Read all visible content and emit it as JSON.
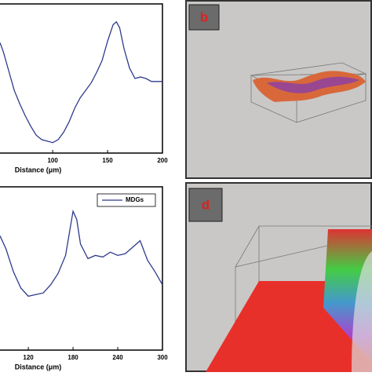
{
  "chart_data": [
    {
      "type": "line",
      "xlabel": "Distance (μm)",
      "xlim": [
        52,
        200
      ],
      "xticks": [
        100,
        150,
        200
      ],
      "ylim": [
        0,
        100
      ],
      "x": [
        52,
        55,
        60,
        65,
        70,
        75,
        80,
        85,
        90,
        95,
        100,
        105,
        110,
        115,
        120,
        125,
        130,
        135,
        140,
        145,
        150,
        155,
        158,
        161,
        165,
        170,
        175,
        180,
        185,
        190,
        195,
        200
      ],
      "series": [
        {
          "color": "#2e3a8c",
          "values": [
            74,
            68,
            55,
            42,
            33,
            25,
            18,
            12,
            9,
            8,
            7,
            9,
            14,
            21,
            30,
            37,
            42,
            47,
            54,
            62,
            75,
            86,
            88,
            84,
            70,
            57,
            50,
            51,
            50,
            48,
            48,
            48
          ]
        }
      ]
    },
    {
      "type": "line",
      "xlabel": "Distance (μm)",
      "xlim": [
        82,
        300
      ],
      "xticks": [
        120,
        180,
        240,
        300
      ],
      "ylim": [
        0,
        100
      ],
      "x": [
        82,
        90,
        100,
        110,
        120,
        130,
        140,
        150,
        160,
        170,
        180,
        185,
        190,
        200,
        210,
        220,
        230,
        240,
        250,
        260,
        270,
        280,
        290,
        300
      ],
      "series": [
        {
          "name": "MDGs",
          "color": "#2e3a8c",
          "values": [
            70,
            62,
            48,
            38,
            33,
            34,
            35,
            40,
            47,
            58,
            85,
            80,
            65,
            56,
            58,
            57,
            60,
            58,
            59,
            63,
            67,
            55,
            48,
            40
          ]
        }
      ]
    }
  ],
  "panels": [
    {
      "label": "b"
    },
    {
      "label": "d"
    }
  ]
}
